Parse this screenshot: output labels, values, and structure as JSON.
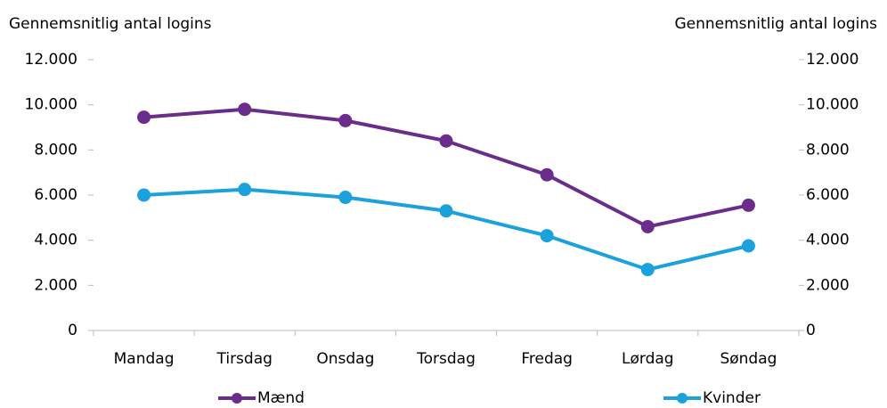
{
  "chart_data": {
    "type": "line",
    "y_label": "Gennemsnitlig antal logins",
    "y2_label": "Gennemsnitlig antal logins",
    "categories": [
      "Mandag",
      "Tirsdag",
      "Onsdag",
      "Torsdag",
      "Fredag",
      "Lørdag",
      "Søndag"
    ],
    "series": [
      {
        "name": "Mænd",
        "color": "#6b2d8b",
        "values": [
          9450,
          9800,
          9300,
          8400,
          6900,
          4600,
          5550
        ]
      },
      {
        "name": "Kvinder",
        "color": "#1ba1dc",
        "values": [
          6000,
          6250,
          5900,
          5300,
          4200,
          2700,
          3750
        ]
      }
    ],
    "ylim": [
      0,
      12000
    ],
    "yticks": [
      0,
      {
        "value": 2000,
        "label": "2.000"
      },
      {
        "value": 4000,
        "label": "4.000"
      },
      {
        "value": 6000,
        "label": "6.000"
      },
      {
        "value": 8000,
        "label": "8.000"
      },
      {
        "value": 10000,
        "label": "10.000"
      },
      {
        "value": 12000,
        "label": "12.000"
      }
    ],
    "y2lim": [
      0,
      12000
    ],
    "y2ticks": [
      0,
      {
        "value": 2000,
        "label": "2.000"
      },
      {
        "value": 4000,
        "label": "4.000"
      },
      {
        "value": 6000,
        "label": "6.000"
      },
      {
        "value": 8000,
        "label": "8.000"
      },
      {
        "value": 10000,
        "label": "10.000"
      },
      {
        "value": 12000,
        "label": "12.000"
      }
    ],
    "legend": "bottom"
  }
}
